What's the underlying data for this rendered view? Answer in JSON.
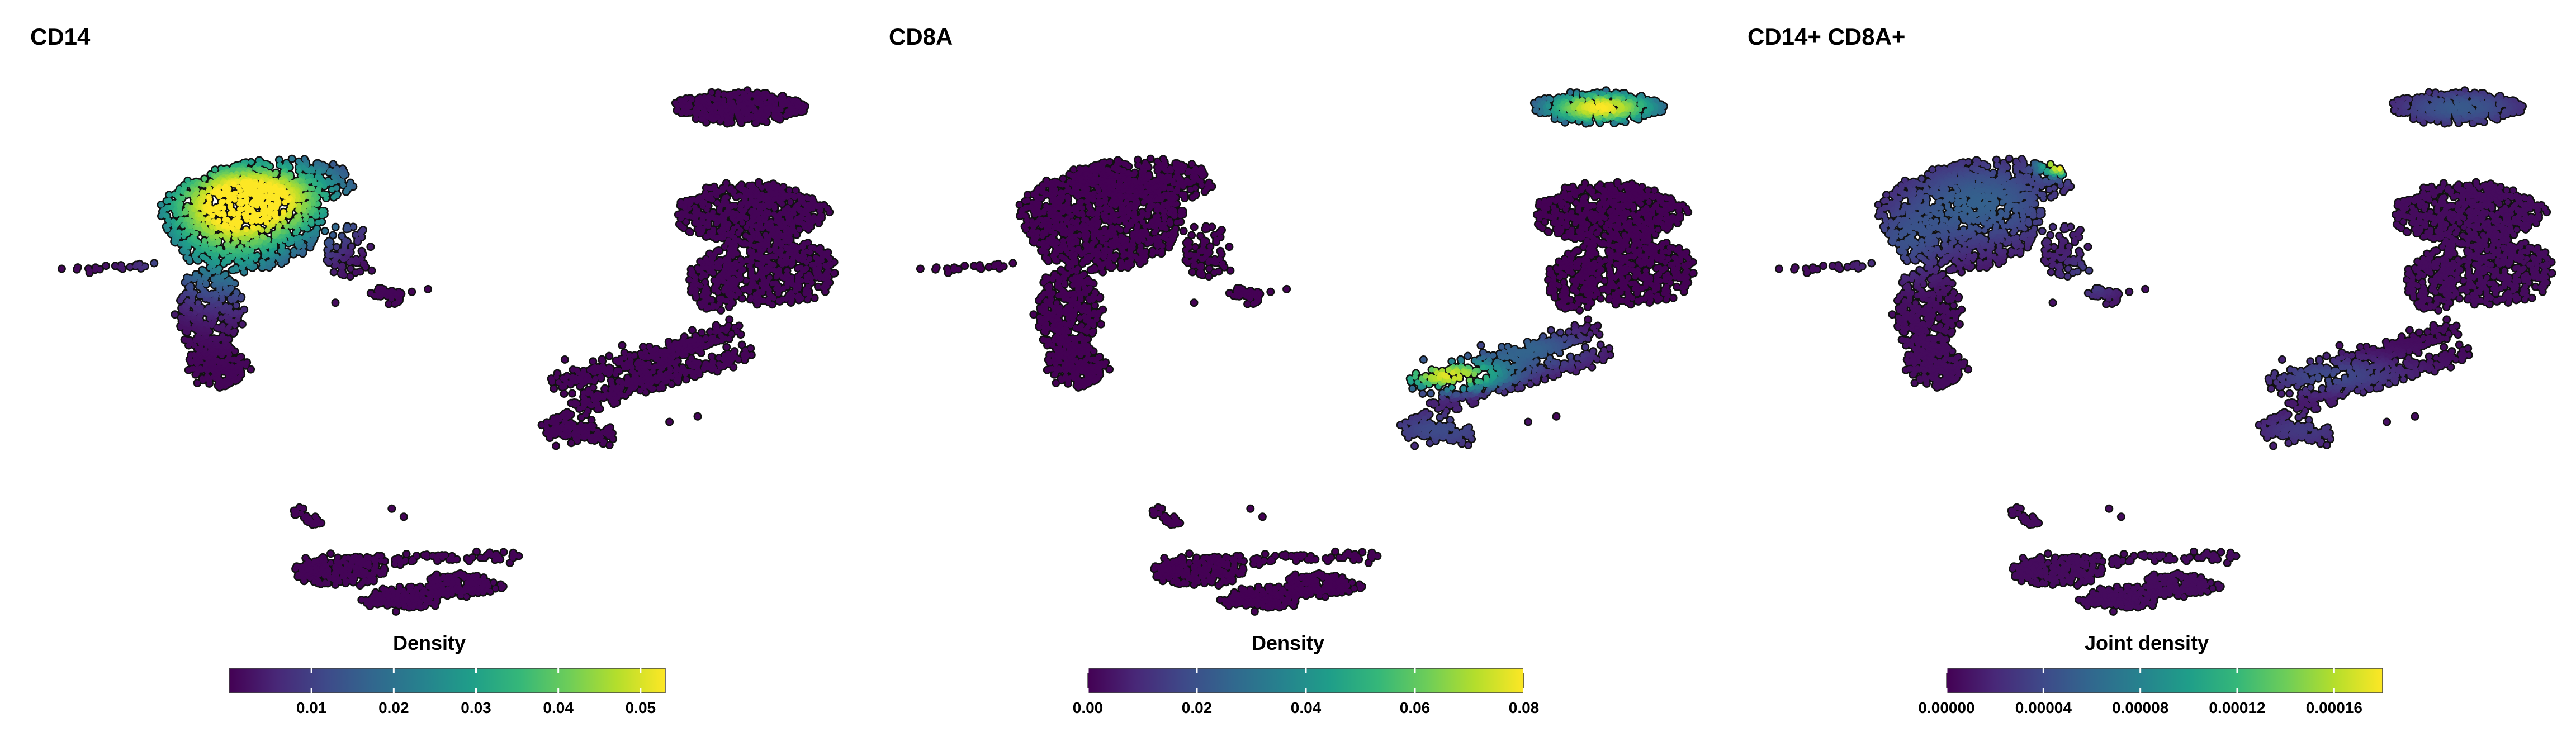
{
  "chart_data": [
    {
      "type": "scatter",
      "title": "CD14",
      "legend_title": "Density",
      "colorscale": "viridis",
      "value_range": [
        0.0,
        0.053
      ],
      "colorbar_ticks": [
        {
          "value": 0.01,
          "label": "0.01"
        },
        {
          "value": 0.02,
          "label": "0.02"
        },
        {
          "value": 0.03,
          "label": "0.03"
        },
        {
          "value": 0.04,
          "label": "0.04"
        },
        {
          "value": 0.05,
          "label": "0.05"
        }
      ],
      "hotspots": [
        {
          "x": -4.5,
          "y": 5.0,
          "sx": 1.6,
          "sy": 1.1,
          "w": 0.053
        },
        {
          "x": -5.2,
          "y": 3.2,
          "sx": 1.3,
          "sy": 1.4,
          "w": 0.026
        }
      ],
      "baseline": 0.0005
    },
    {
      "type": "scatter",
      "title": "CD8A",
      "legend_title": "Density",
      "colorscale": "viridis",
      "value_range": [
        0.0,
        0.08
      ],
      "colorbar_ticks": [
        {
          "value": 0.0,
          "label": "0.00"
        },
        {
          "value": 0.02,
          "label": "0.02"
        },
        {
          "value": 0.04,
          "label": "0.04"
        },
        {
          "value": 0.06,
          "label": "0.06"
        },
        {
          "value": 0.08,
          "label": "0.08"
        }
      ],
      "hotspots": [
        {
          "x": 7.6,
          "y": 8.3,
          "sx": 1.1,
          "sy": 0.45,
          "w": 0.08
        },
        {
          "x": 3.8,
          "y": -1.6,
          "sx": 1.0,
          "sy": 0.4,
          "w": 0.075
        },
        {
          "x": 5.8,
          "y": -0.6,
          "sx": 1.2,
          "sy": 0.6,
          "w": 0.025
        },
        {
          "x": 3.6,
          "y": -3.6,
          "sx": 1.3,
          "sy": 0.6,
          "w": 0.018
        }
      ],
      "baseline": 0.0
    },
    {
      "type": "scatter",
      "title": "CD14+ CD8A+",
      "legend_title": "Joint density",
      "colorscale": "viridis",
      "value_range": [
        0.0,
        0.00018
      ],
      "colorbar_ticks": [
        {
          "value": 0.0,
          "label": "0.00000"
        },
        {
          "value": 4e-05,
          "label": "0.00004"
        },
        {
          "value": 8e-05,
          "label": "0.00008"
        },
        {
          "value": 0.00012,
          "label": "0.00012"
        },
        {
          "value": 0.00016,
          "label": "0.00016"
        }
      ],
      "hotspots": [
        {
          "x": -2.3,
          "y": 6.2,
          "sx": 0.35,
          "sy": 0.3,
          "w": 0.00018
        },
        {
          "x": -4.3,
          "y": 4.8,
          "sx": 1.5,
          "sy": 1.2,
          "w": 5e-05
        },
        {
          "x": -6.3,
          "y": 3.2,
          "sx": 0.8,
          "sy": 0.9,
          "w": 3e-05
        },
        {
          "x": 7.6,
          "y": 8.3,
          "sx": 1.2,
          "sy": 0.5,
          "w": 4.5e-05
        },
        {
          "x": 4.4,
          "y": -1.6,
          "sx": 1.4,
          "sy": 0.5,
          "w": 3.5e-05
        },
        {
          "x": 3.7,
          "y": -3.6,
          "sx": 1.0,
          "sy": 0.5,
          "w": 2.5e-05
        },
        {
          "x": -1.6,
          "y": 2.0,
          "sx": 0.6,
          "sy": 0.6,
          "w": 3e-05
        }
      ],
      "baseline": 5e-06
    }
  ]
}
